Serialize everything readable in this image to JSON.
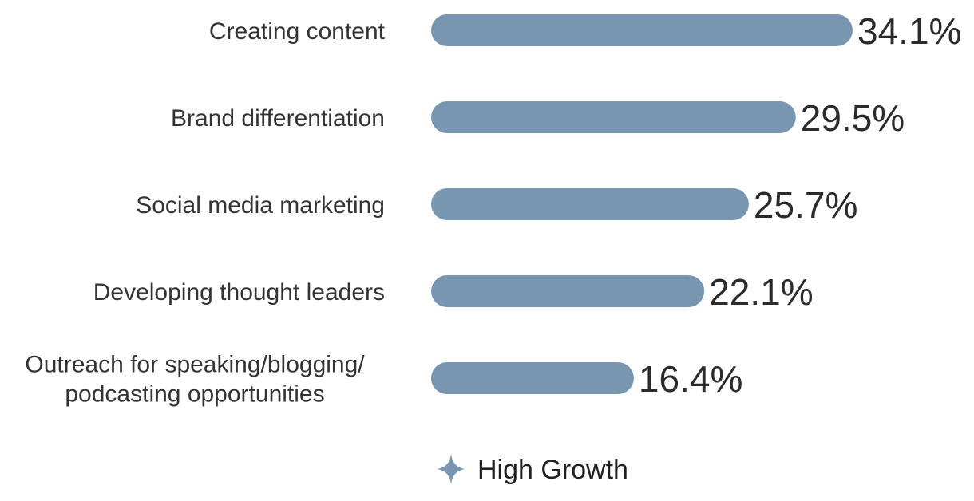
{
  "chart_data": {
    "type": "bar",
    "orientation": "horizontal",
    "categories": [
      "Creating content",
      "Brand differentiation",
      "Social media marketing",
      "Developing thought leaders",
      "Outreach for speaking/blogging/ podcasting opportunities"
    ],
    "category_lines": [
      [
        "Creating content"
      ],
      [
        "Brand differentiation"
      ],
      [
        "Social media marketing"
      ],
      [
        "Developing thought leaders"
      ],
      [
        "Outreach for speaking/blogging/",
        "podcasting opportunities"
      ]
    ],
    "series": [
      {
        "name": "High Growth",
        "values": [
          34.1,
          29.5,
          25.7,
          22.1,
          16.4
        ],
        "value_labels": [
          "34.1%",
          "29.5%",
          "25.7%",
          "22.1%",
          "16.4%"
        ],
        "color": "#7896b0"
      }
    ],
    "value_max": 34.1,
    "grid": false,
    "legend": {
      "position": "bottom",
      "marker": "four-point-star-icon",
      "label": "High Growth"
    }
  }
}
